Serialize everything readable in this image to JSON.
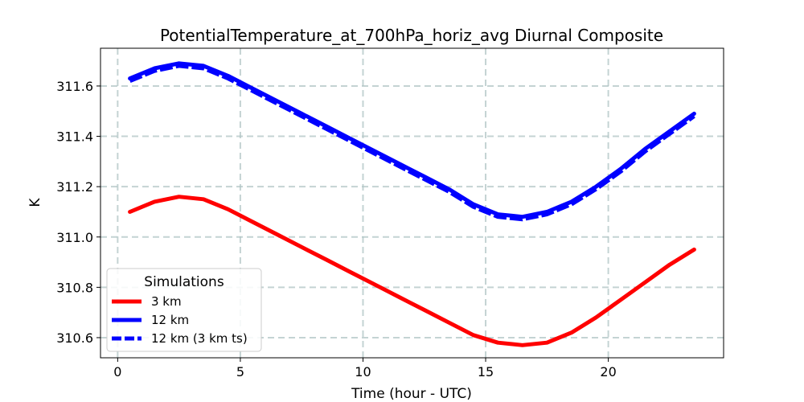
{
  "chart_data": {
    "type": "line",
    "title": "PotentialTemperature_at_700hPa_horiz_avg Diurnal Composite",
    "xlabel": "Time (hour - UTC)",
    "ylabel": "K",
    "xlim": [
      -0.7,
      24.7
    ],
    "ylim": [
      310.52,
      311.75
    ],
    "xticks": [
      0,
      5,
      10,
      15,
      20
    ],
    "yticks": [
      310.6,
      310.8,
      311.0,
      311.2,
      311.4,
      311.6
    ],
    "grid": true,
    "legend": {
      "title": "Simulations",
      "position": "lower-left"
    },
    "x": [
      0.5,
      1.5,
      2.5,
      3.5,
      4.5,
      5.5,
      6.5,
      7.5,
      8.5,
      9.5,
      10.5,
      11.5,
      12.5,
      13.5,
      14.5,
      15.5,
      16.5,
      17.5,
      18.5,
      19.5,
      20.5,
      21.5,
      22.5,
      23.5
    ],
    "series": [
      {
        "name": "3 km",
        "color": "#ff0000",
        "style": "solid",
        "values": [
          311.1,
          311.14,
          311.16,
          311.15,
          311.11,
          311.06,
          311.01,
          310.96,
          310.91,
          310.86,
          310.81,
          310.76,
          310.71,
          310.66,
          310.61,
          310.58,
          310.57,
          310.58,
          310.62,
          310.68,
          310.75,
          310.82,
          310.89,
          310.95
        ]
      },
      {
        "name": "12 km",
        "color": "#0000ff",
        "style": "solid",
        "values": [
          311.63,
          311.67,
          311.69,
          311.68,
          311.64,
          311.59,
          311.54,
          311.49,
          311.44,
          311.39,
          311.34,
          311.29,
          311.24,
          311.19,
          311.13,
          311.09,
          311.08,
          311.1,
          311.14,
          311.2,
          311.27,
          311.35,
          311.42,
          311.49
        ]
      },
      {
        "name": "12 km (3 km ts)",
        "color": "#0000ff",
        "style": "dashed",
        "values": [
          311.62,
          311.66,
          311.68,
          311.67,
          311.63,
          311.58,
          311.53,
          311.48,
          311.43,
          311.38,
          311.33,
          311.28,
          311.23,
          311.18,
          311.12,
          311.08,
          311.07,
          311.09,
          311.13,
          311.19,
          311.26,
          311.34,
          311.41,
          311.48
        ]
      }
    ]
  }
}
